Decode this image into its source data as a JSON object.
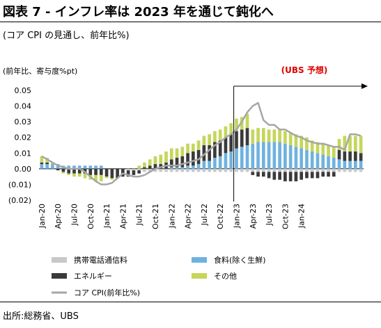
{
  "header": {
    "title": "図表 7 - インフレ率は 2023 年を通じて鈍化へ",
    "subtitle": "(コア CPI の見通し、前年比%)",
    "unit": "(前年比、寄与度%pt)"
  },
  "footer": {
    "source": "出所:総務省、UBS"
  },
  "chart_data": {
    "type": "bar",
    "stacked": true,
    "x_tick_labels": [
      "Jan-20",
      "Apr-20",
      "Jul-20",
      "Oct-20",
      "Jan-21",
      "Apr-21",
      "Jul-21",
      "Oct-21",
      "Jan-22",
      "Apr-22",
      "Jul-22",
      "Oct-22",
      "Jan-23",
      "Apr-23",
      "Jul-23",
      "Oct-23",
      "Jan-24"
    ],
    "x_start": "Jan-20",
    "y_tick_labels": [
      "0.05",
      "0.04",
      "0.03",
      "0.02",
      "0.01",
      "0.00",
      "(0.01)",
      "(0.02)"
    ],
    "ylim": [
      -0.02,
      0.05
    ],
    "forecast_start": "Jan-23",
    "forecast_label": "(UBS 予想)",
    "colors": {
      "mobile": "#c8c8c8",
      "food": "#6fb2df",
      "energy": "#3a3a3a",
      "other": "#c5d65c",
      "core": "#a6a6a6",
      "forecast": "#e00000"
    },
    "series": [
      {
        "name": "携帯電話通信料",
        "key": "mobile",
        "kind": "bar",
        "values": [
          0,
          0,
          0,
          0,
          0,
          0,
          0,
          0,
          0,
          0,
          0,
          0,
          0,
          0,
          0,
          0,
          -0.001,
          -0.001,
          -0.001,
          -0.002,
          -0.002,
          -0.002,
          -0.002,
          -0.002,
          -0.002,
          -0.002,
          -0.002,
          -0.002,
          -0.002,
          -0.002,
          -0.002,
          -0.002,
          -0.002,
          -0.002,
          -0.002,
          -0.002,
          -0.002,
          -0.002,
          -0.002,
          -0.002,
          -0.002,
          -0.002,
          -0.002,
          -0.002,
          -0.002,
          -0.002,
          -0.002,
          -0.002,
          -0.002,
          -0.002,
          -0.002,
          -0.002,
          -0.002,
          -0.002,
          -0.002,
          -0.002,
          -0.002,
          -0.002,
          -0.002,
          -0.002
        ]
      },
      {
        "name": "食料(除く生鮮)",
        "key": "food",
        "kind": "bar",
        "values": [
          0.003,
          0.003,
          0.003,
          0.003,
          0.002,
          0.002,
          0.002,
          0.002,
          0.002,
          0.002,
          0.002,
          0.002,
          0,
          0,
          0,
          0,
          0,
          0,
          0,
          0,
          0,
          0,
          0,
          0,
          0.001,
          0.001,
          0.001,
          0.002,
          0.002,
          0.003,
          0.005,
          0.005,
          0.007,
          0.008,
          0.01,
          0.011,
          0.013,
          0.014,
          0.015,
          0.016,
          0.017,
          0.017,
          0.017,
          0.017,
          0.017,
          0.016,
          0.015,
          0.014,
          0.013,
          0.012,
          0.011,
          0.01,
          0.009,
          0.008,
          0.007,
          0.006,
          0.005,
          0.005,
          0.005,
          0.005
        ]
      },
      {
        "name": "エネルギー",
        "key": "energy",
        "kind": "bar",
        "values": [
          0.001,
          0.001,
          0,
          -0.001,
          -0.002,
          -0.003,
          -0.003,
          -0.003,
          -0.003,
          -0.004,
          -0.004,
          -0.004,
          -0.005,
          -0.006,
          -0.006,
          -0.005,
          -0.004,
          -0.003,
          -0.002,
          0.001,
          0.002,
          0.003,
          0.003,
          0.004,
          0.005,
          0.006,
          0.007,
          0.008,
          0.009,
          0.009,
          0.01,
          0.01,
          0.01,
          0.01,
          0.01,
          0.011,
          0.011,
          0.011,
          0.011,
          -0.002,
          -0.003,
          -0.003,
          -0.004,
          -0.005,
          -0.005,
          -0.006,
          -0.006,
          -0.006,
          -0.005,
          -0.004,
          -0.004,
          -0.004,
          -0.003,
          -0.003,
          -0.003,
          0.006,
          0.006,
          0.006,
          0.006,
          0.005
        ]
      },
      {
        "name": "その他",
        "key": "other",
        "kind": "bar",
        "values": [
          0.004,
          0.003,
          0.001,
          0,
          -0.001,
          -0.001,
          -0.002,
          -0.002,
          -0.003,
          -0.003,
          -0.004,
          -0.004,
          -0.001,
          -0.001,
          0,
          0,
          0,
          0,
          0.002,
          0.003,
          0.004,
          0.005,
          0.006,
          0.007,
          0.007,
          0.006,
          0.006,
          0.006,
          0.005,
          0.006,
          0.006,
          0.007,
          0.007,
          0.007,
          0.007,
          0.007,
          0.008,
          0.008,
          0.009,
          0.009,
          0.009,
          0.009,
          0.008,
          0.008,
          0.008,
          0.008,
          0.008,
          0.008,
          0.008,
          0.008,
          0.007,
          0.007,
          0.007,
          0.007,
          0.007,
          0.007,
          0.01,
          0.01,
          0.01,
          0.011
        ]
      },
      {
        "name": "コア CPI(前年比%)",
        "key": "core",
        "kind": "line",
        "values": [
          0.008,
          0.006,
          0.004,
          0.002,
          0.001,
          0,
          0,
          0,
          -0.002,
          -0.005,
          -0.008,
          -0.01,
          -0.01,
          -0.009,
          -0.006,
          -0.003,
          -0.004,
          -0.005,
          -0.005,
          -0.004,
          -0.002,
          0,
          0.001,
          0.002,
          0.002,
          0.002,
          0.003,
          0.004,
          0.005,
          0.006,
          0.009,
          0.012,
          0.015,
          0.017,
          0.02,
          0.022,
          0.025,
          0.03,
          0.036,
          0.04,
          0.042,
          0.031,
          0.028,
          0.028,
          0.025,
          0.025,
          0.023,
          0.021,
          0.02,
          0.018,
          0.017,
          0.016,
          0.016,
          0.015,
          0.014,
          0.014,
          0.012,
          0.022,
          0.022,
          0.021
        ]
      }
    ]
  }
}
